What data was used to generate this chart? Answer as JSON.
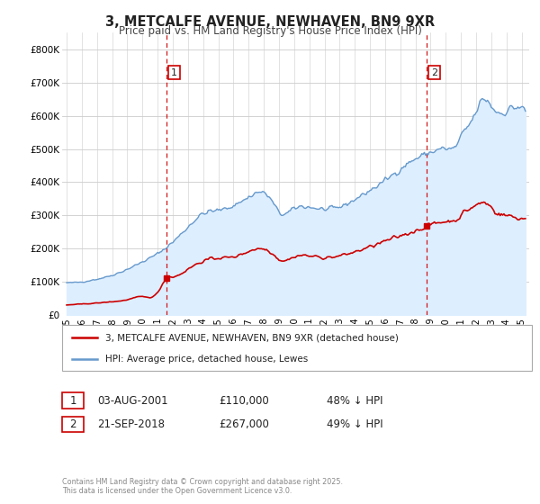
{
  "title": "3, METCALFE AVENUE, NEWHAVEN, BN9 9XR",
  "subtitle": "Price paid vs. HM Land Registry's House Price Index (HPI)",
  "legend_line1": "3, METCALFE AVENUE, NEWHAVEN, BN9 9XR (detached house)",
  "legend_line2": "HPI: Average price, detached house, Lewes",
  "purchase1_date": "03-AUG-2001",
  "purchase1_price": "£110,000",
  "purchase1_hpi": "48% ↓ HPI",
  "purchase1_year": 2001.58,
  "purchase1_value": 110000,
  "purchase2_date": "21-SEP-2018",
  "purchase2_price": "£267,000",
  "purchase2_hpi": "49% ↓ HPI",
  "purchase2_year": 2018.72,
  "purchase2_value": 267000,
  "red_line_color": "#cc0000",
  "blue_line_color": "#6699cc",
  "blue_fill_color": "#ddeeff",
  "dashed_line_color": "#cc0000",
  "background_color": "#ffffff",
  "grid_color": "#cccccc",
  "footer": "Contains HM Land Registry data © Crown copyright and database right 2025.\nThis data is licensed under the Open Government Licence v3.0.",
  "ylim": [
    0,
    850000
  ],
  "yticks": [
    0,
    100000,
    200000,
    300000,
    400000,
    500000,
    600000,
    700000,
    800000
  ],
  "ytick_labels": [
    "£0",
    "£100K",
    "£200K",
    "£300K",
    "£400K",
    "£500K",
    "£600K",
    "£700K",
    "£800K"
  ],
  "xlim_start": 1994.7,
  "xlim_end": 2025.5
}
